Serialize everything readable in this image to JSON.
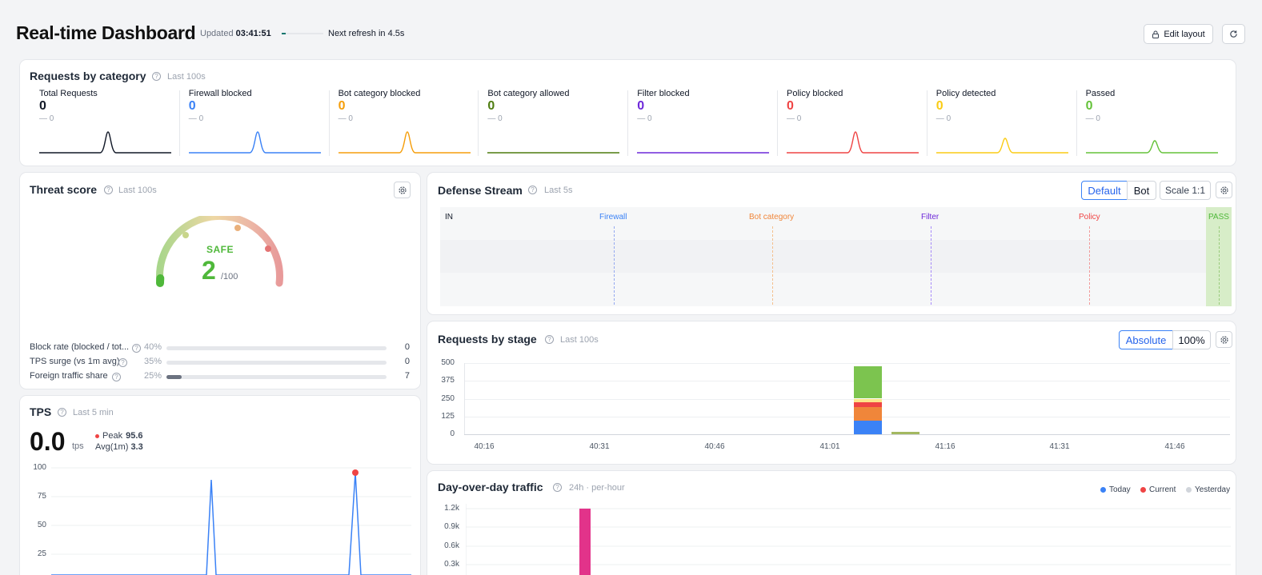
{
  "header": {
    "title": "Real-time Dashboard",
    "updated_label": "Updated",
    "updated_time": "03:41:51",
    "refresh_progress": 0.1,
    "next_refresh": "Next refresh in 4.5s",
    "edit_layout": "Edit layout",
    "lock_icon": "lock-icon",
    "reload_icon": "reload-icon"
  },
  "requests_by_category": {
    "title": "Requests by category",
    "subtitle": "Last 100s",
    "items": [
      {
        "label": "Total Requests",
        "value": "0",
        "delta": "— 0",
        "color": "#111827"
      },
      {
        "label": "Firewall blocked",
        "value": "0",
        "delta": "— 0",
        "color": "#3b82f6"
      },
      {
        "label": "Bot category blocked",
        "value": "0",
        "delta": "— 0",
        "color": "#f59e0b"
      },
      {
        "label": "Bot category allowed",
        "value": "0",
        "delta": "— 0",
        "color": "#4d7c0f"
      },
      {
        "label": "Filter blocked",
        "value": "0",
        "delta": "— 0",
        "color": "#6d28d9"
      },
      {
        "label": "Policy blocked",
        "value": "0",
        "delta": "— 0",
        "color": "#ef4444"
      },
      {
        "label": "Policy detected",
        "value": "0",
        "delta": "— 0",
        "color": "#facc15"
      },
      {
        "label": "Passed",
        "value": "0",
        "delta": "— 0",
        "color": "#65c23a"
      }
    ]
  },
  "threat_score": {
    "title": "Threat score",
    "subtitle": "Last 100s",
    "status": "SAFE",
    "score": "2",
    "max": "/100",
    "metrics": [
      {
        "label": "Block rate (blocked / tot...",
        "pct": "40%",
        "fill": 0,
        "value": "0"
      },
      {
        "label": "TPS surge (vs 1m avg)",
        "pct": "35%",
        "fill": 0,
        "value": "0"
      },
      {
        "label": "Foreign traffic share",
        "pct": "25%",
        "fill": 0.07,
        "value": "7"
      }
    ]
  },
  "tps": {
    "title": "TPS",
    "subtitle": "Last 5 min",
    "value": "0.0",
    "unit": "tps",
    "peak_label": "Peak",
    "peak_value": "95.6",
    "avg_label": "Avg(1m)",
    "avg_value": "3.3",
    "y_ticks": [
      "100",
      "75",
      "50",
      "25"
    ]
  },
  "defense_stream": {
    "title": "Defense Stream",
    "subtitle": "Last 5s",
    "mode_default": "Default",
    "mode_bot": "Bot",
    "scale": "Scale 1:1",
    "stages": {
      "in": "IN",
      "firewall": "Firewall",
      "bot_category": "Bot category",
      "filter": "Filter",
      "policy": "Policy",
      "pass": "PASS"
    }
  },
  "requests_by_stage": {
    "title": "Requests by stage",
    "subtitle": "Last 100s",
    "mode_absolute": "Absolute",
    "mode_percent": "100%"
  },
  "day_over_day": {
    "title": "Day-over-day traffic",
    "subtitle": "24h · per-hour",
    "legend": [
      {
        "label": "Today",
        "color": "#3b82f6"
      },
      {
        "label": "Current",
        "color": "#ef4444"
      },
      {
        "label": "Yesterday",
        "color": "#d1d5db"
      }
    ],
    "y_ticks": [
      "1.2k",
      "0.9k",
      "0.6k",
      "0.3k"
    ]
  },
  "chart_data": [
    {
      "type": "bar",
      "title": "Requests by stage",
      "x_ticks": [
        "40:16",
        "40:31",
        "40:46",
        "41:01",
        "41:16",
        "41:31",
        "41:46"
      ],
      "y_ticks": [
        "500",
        "375",
        "250",
        "125",
        "0"
      ],
      "ylim": [
        0,
        500
      ],
      "stacked": true,
      "bars": [
        {
          "x": "41:08",
          "segments": [
            {
              "color": "#3b82f6",
              "value": 95
            },
            {
              "color": "#f0863a",
              "value": 95
            },
            {
              "color": "#ef4444",
              "value": 35
            },
            {
              "color": "#fde68a",
              "value": 25
            },
            {
              "color": "#7cc44f",
              "value": 225
            }
          ]
        },
        {
          "x": "41:12",
          "segments": [
            {
              "color": "#a3b860",
              "value": 18
            }
          ]
        }
      ]
    }
  ]
}
